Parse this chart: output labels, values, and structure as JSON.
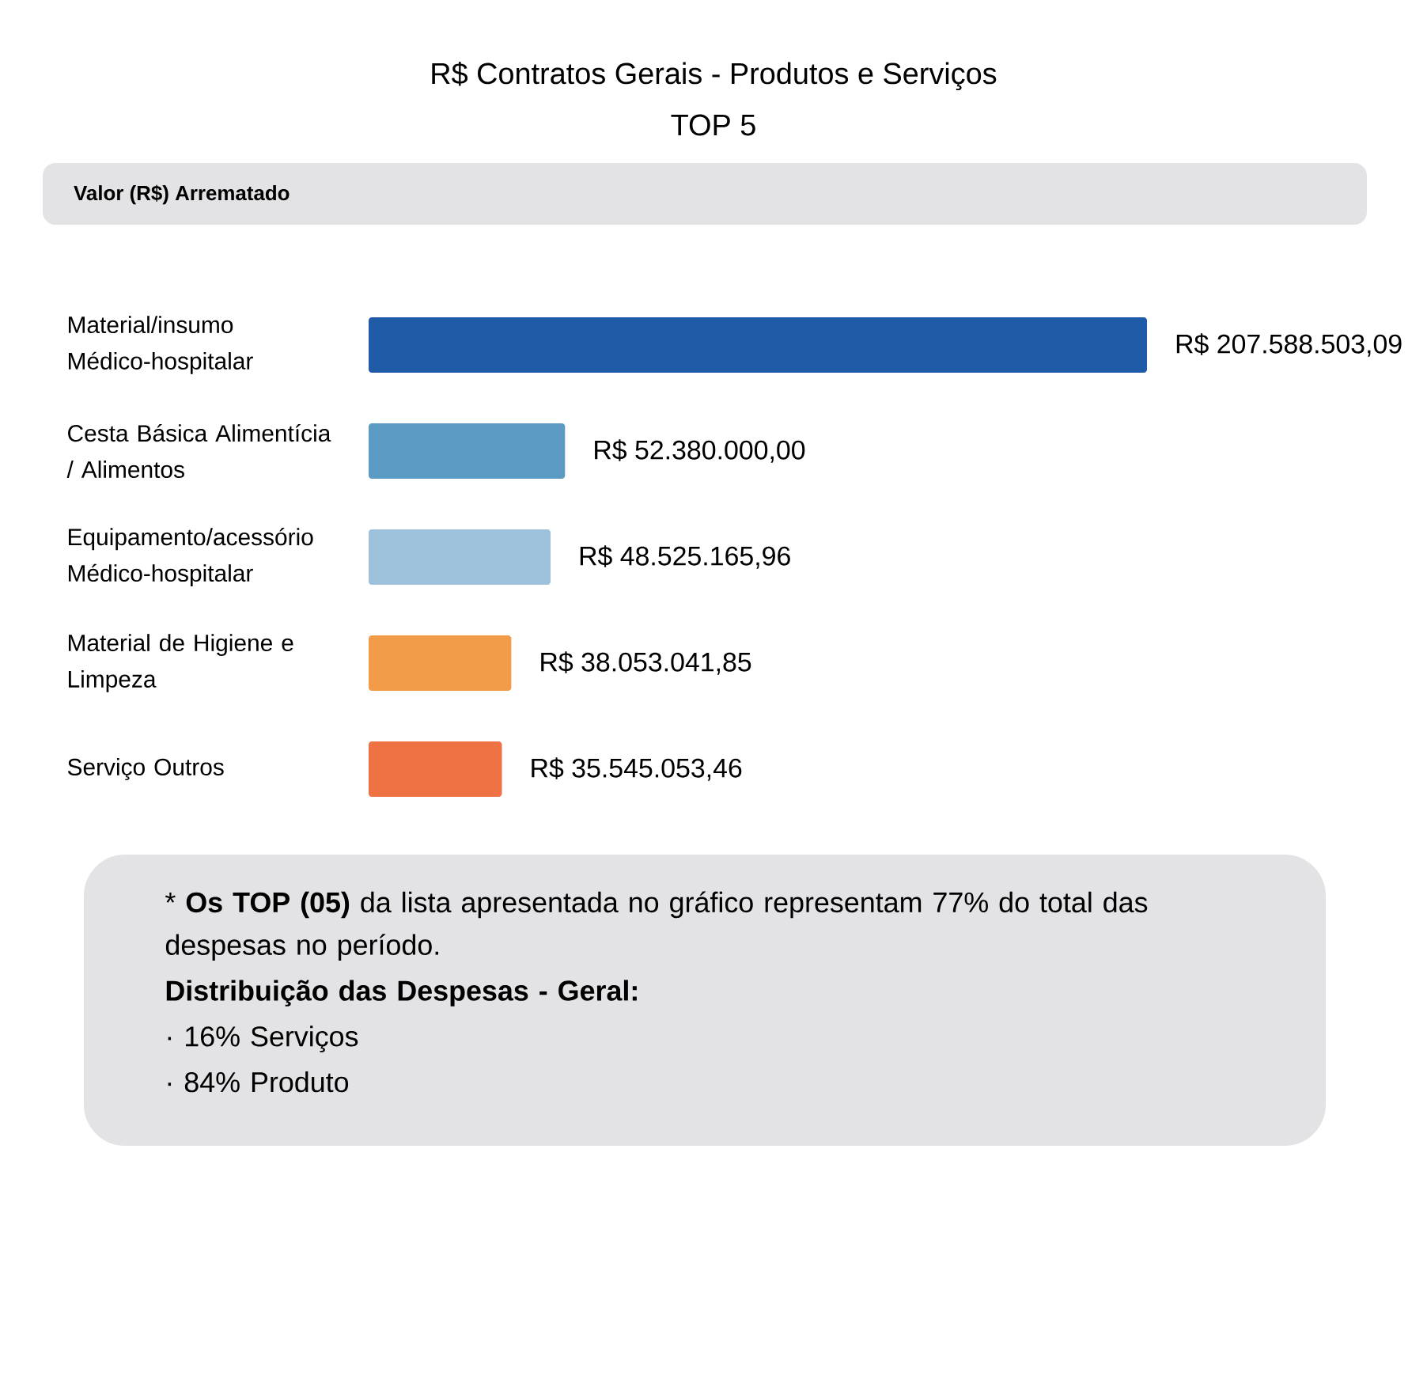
{
  "chart_data": {
    "type": "bar",
    "title": "R$ Contratos Gerais - Produtos e Serviços",
    "subtitle": "TOP 5",
    "xlabel": "Valor (R$) Arrematado",
    "categories": [
      "Material/insumo Médico-hospitalar",
      "Cesta Básica Alimentícia / Alimentos",
      "Equipamento/acessório Médico-hospitalar",
      "Material de Higiene e Limpeza",
      "Serviço Outros"
    ],
    "values": [
      207588503.09,
      52380000.0,
      48525165.96,
      38053041.85,
      35545053.46
    ],
    "colors": [
      "#1f5ba6",
      "#5b9bc3",
      "#9dc1db",
      "#f29c4a",
      "#ef7245"
    ],
    "value_labels": [
      "R$ 207.588.503,09",
      "R$ 52.380.000,00",
      "R$ 48.525.165,96",
      "R$ 38.053.041,85",
      "R$ 35.545.053,46"
    ],
    "annotations": [
      "* **Os TOP (05)** da lista apresentada no gráfico representam 77% do total das despesas no período.",
      "**Distribuição das Despesas - Geral:**",
      "· 16% Serviços",
      "· 84% Produto"
    ],
    "orientation": "horizontal"
  }
}
